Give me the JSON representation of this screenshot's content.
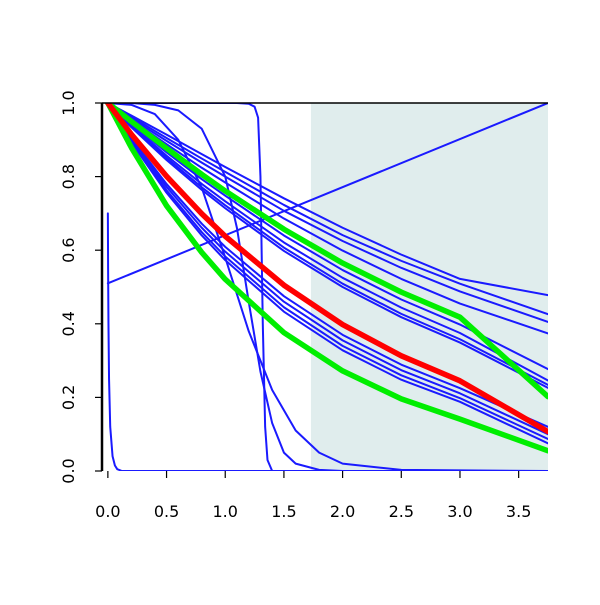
{
  "chart_data": {
    "type": "line",
    "title": "",
    "xlabel": "",
    "ylabel": "",
    "xlim": [
      -0.05,
      3.75
    ],
    "ylim": [
      0.0,
      1.0
    ],
    "x_ticks": [
      0.0,
      0.5,
      1.0,
      1.5,
      2.0,
      2.5,
      3.0,
      3.5
    ],
    "x_tick_labels": [
      "0.0",
      "0.5",
      "1.0",
      "1.5",
      "2.0",
      "2.5",
      "3.0",
      "3.5"
    ],
    "y_ticks": [
      0.0,
      0.2,
      0.4,
      0.6,
      0.8,
      1.0
    ],
    "y_tick_labels": [
      "0.0",
      "0.2",
      "0.4",
      "0.6",
      "0.8",
      "1.0"
    ],
    "grid": false,
    "legend": "none",
    "shaded_region": {
      "x_start": 1.73,
      "x_end": 3.75,
      "color": "#e0eded"
    },
    "series": [
      {
        "color": "#1a1aff",
        "width": "thin",
        "x": [
          0.0,
          0.2,
          0.5,
          0.8,
          1.0,
          1.5,
          2.0,
          2.5,
          3.0,
          3.75
        ],
        "y": [
          1.0,
          0.962,
          0.905,
          0.849,
          0.813,
          0.723,
          0.641,
          0.571,
          0.509,
          0.426
        ]
      },
      {
        "color": "#1a1aff",
        "width": "thin",
        "x": [
          0.0,
          0.2,
          0.5,
          0.8,
          1.0,
          1.5,
          2.0,
          2.5,
          3.0,
          3.75
        ],
        "y": [
          1.0,
          0.958,
          0.897,
          0.838,
          0.8,
          0.707,
          0.625,
          0.552,
          0.488,
          0.405
        ]
      },
      {
        "color": "#1a1aff",
        "width": "thin",
        "x": [
          0.0,
          0.2,
          0.5,
          0.8,
          1.0,
          1.5,
          2.0,
          2.5,
          3.0,
          3.75
        ],
        "y": [
          1.0,
          0.966,
          0.914,
          0.861,
          0.826,
          0.741,
          0.661,
          0.588,
          0.522,
          0.478
        ]
      },
      {
        "color": "#1a1aff",
        "width": "thin",
        "x": [
          0.0,
          0.2,
          0.5,
          0.8,
          1.0,
          1.5,
          2.0,
          2.5,
          3.0,
          3.75
        ],
        "y": [
          1.0,
          0.954,
          0.888,
          0.824,
          0.784,
          0.686,
          0.599,
          0.522,
          0.455,
          0.374
        ]
      },
      {
        "color": "#1a1aff",
        "width": "thin",
        "x": [
          0.0,
          0.2,
          0.5,
          0.8,
          1.0,
          1.5,
          2.0,
          2.5,
          3.0,
          3.75
        ],
        "y": [
          1.0,
          0.944,
          0.866,
          0.793,
          0.748,
          0.64,
          0.546,
          0.466,
          0.398,
          0.277
        ]
      },
      {
        "color": "#1a1aff",
        "width": "thin",
        "x": [
          0.0,
          0.2,
          0.5,
          0.8,
          1.0,
          1.5,
          2.0,
          2.5,
          3.0,
          3.75
        ],
        "y": [
          1.0,
          0.94,
          0.857,
          0.78,
          0.733,
          0.621,
          0.525,
          0.444,
          0.375,
          0.246
        ]
      },
      {
        "color": "#1a1aff",
        "width": "thin",
        "x": [
          0.0,
          0.2,
          0.5,
          0.8,
          1.0,
          1.5,
          2.0,
          2.5,
          3.0,
          3.75
        ],
        "y": [
          1.0,
          0.937,
          0.851,
          0.771,
          0.722,
          0.607,
          0.509,
          0.427,
          0.358,
          0.234
        ]
      },
      {
        "color": "#1a1aff",
        "width": "thin",
        "x": [
          0.0,
          0.2,
          0.5,
          0.8,
          1.0,
          1.5,
          2.0,
          2.5,
          3.0,
          3.75
        ],
        "y": [
          1.0,
          0.934,
          0.845,
          0.764,
          0.714,
          0.598,
          0.5,
          0.418,
          0.349,
          0.226
        ]
      },
      {
        "color": "#1a1aff",
        "width": "thin",
        "x": [
          0.0,
          0.2,
          0.5,
          0.8,
          1.0,
          1.5,
          2.0,
          2.5,
          3.0,
          3.75
        ],
        "y": [
          1.0,
          0.905,
          0.78,
          0.672,
          0.609,
          0.475,
          0.37,
          0.289,
          0.225,
          0.12
        ]
      },
      {
        "color": "#1a1aff",
        "width": "thin",
        "x": [
          0.0,
          0.2,
          0.5,
          0.8,
          1.0,
          1.5,
          2.0,
          2.5,
          3.0,
          3.75
        ],
        "y": [
          1.0,
          0.901,
          0.772,
          0.661,
          0.596,
          0.46,
          0.355,
          0.274,
          0.211,
          0.1
        ]
      },
      {
        "color": "#1a1aff",
        "width": "thin",
        "x": [
          0.0,
          0.2,
          0.5,
          0.8,
          1.0,
          1.5,
          2.0,
          2.5,
          3.0,
          3.75
        ],
        "y": [
          1.0,
          0.897,
          0.763,
          0.649,
          0.583,
          0.445,
          0.34,
          0.26,
          0.198,
          0.087
        ]
      },
      {
        "color": "#1a1aff",
        "width": "thin",
        "x": [
          0.0,
          0.2,
          0.5,
          0.8,
          1.0,
          1.5,
          2.0,
          2.5,
          3.0,
          3.75
        ],
        "y": [
          1.0,
          0.893,
          0.756,
          0.64,
          0.573,
          0.433,
          0.328,
          0.248,
          0.188,
          0.075
        ]
      },
      {
        "color": "#1a1aff",
        "width": "thin",
        "x": [
          0.0,
          0.2,
          0.4,
          0.6,
          0.8,
          1.0,
          1.2,
          1.4,
          1.6,
          1.8,
          2.0,
          2.5,
          3.75
        ],
        "y": [
          1.0,
          0.995,
          0.97,
          0.9,
          0.77,
          0.58,
          0.38,
          0.22,
          0.11,
          0.05,
          0.02,
          0.003,
          0.0
        ]
      },
      {
        "color": "#1a1aff",
        "width": "thin",
        "x": [
          0.0,
          0.2,
          0.4,
          0.6,
          0.8,
          1.0,
          1.1,
          1.2,
          1.3,
          1.4,
          1.5,
          1.6,
          1.8,
          2.0,
          3.75
        ],
        "y": [
          1.0,
          1.0,
          0.995,
          0.98,
          0.93,
          0.8,
          0.66,
          0.46,
          0.27,
          0.13,
          0.05,
          0.02,
          0.003,
          0.0,
          0.0
        ]
      },
      {
        "color": "#1a1aff",
        "width": "thin",
        "x": [
          0.0,
          0.4,
          0.8,
          1.1,
          1.2,
          1.25,
          1.28,
          1.3,
          1.32,
          1.34,
          1.36,
          1.4,
          3.75
        ],
        "y": [
          1.0,
          1.0,
          1.0,
          1.0,
          0.998,
          0.99,
          0.96,
          0.8,
          0.4,
          0.12,
          0.03,
          0.0,
          0.0
        ]
      },
      {
        "color": "#1a1aff",
        "width": "thin",
        "x": [
          0.0,
          0.002,
          0.005,
          0.01,
          0.02,
          0.04,
          0.06,
          0.08,
          0.12,
          0.2,
          3.75
        ],
        "y": [
          0.7,
          0.55,
          0.4,
          0.25,
          0.12,
          0.04,
          0.015,
          0.005,
          0.0,
          0.0,
          0.0
        ]
      },
      {
        "color": "#1a1aff",
        "width": "thin",
        "x": [
          0.0,
          3.75
        ],
        "y": [
          0.51,
          1.0
        ]
      },
      {
        "color": "#00ee00",
        "width": "thick",
        "x": [
          0.0,
          0.2,
          0.5,
          0.8,
          1.0,
          1.5,
          2.0,
          2.5,
          3.0,
          3.75
        ],
        "y": [
          1.0,
          0.95,
          0.877,
          0.806,
          0.761,
          0.657,
          0.565,
          0.486,
          0.418,
          0.202
        ]
      },
      {
        "color": "#00ee00",
        "width": "thick",
        "x": [
          0.0,
          0.2,
          0.5,
          0.8,
          1.0,
          1.5,
          2.0,
          2.5,
          3.0,
          3.75
        ],
        "y": [
          1.0,
          0.879,
          0.721,
          0.594,
          0.521,
          0.376,
          0.272,
          0.196,
          0.141,
          0.055
        ]
      },
      {
        "color": "#ff0000",
        "width": "thick",
        "x": [
          0.0,
          0.2,
          0.5,
          0.8,
          1.0,
          1.5,
          2.0,
          2.5,
          3.0,
          3.75
        ],
        "y": [
          1.0,
          0.915,
          0.801,
          0.699,
          0.638,
          0.505,
          0.398,
          0.313,
          0.245,
          0.107
        ]
      }
    ]
  }
}
